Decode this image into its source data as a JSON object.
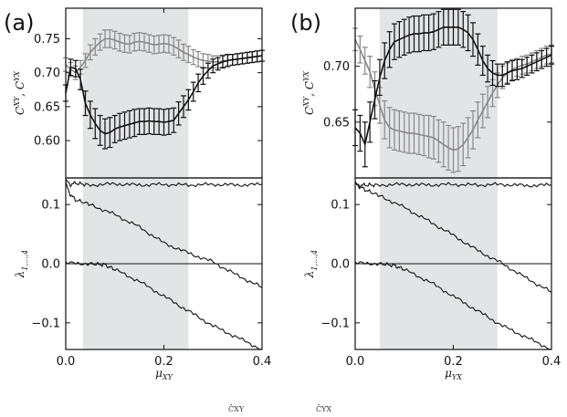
{
  "colors": {
    "shade": "#e3e4e6",
    "black_series": "#111111",
    "gray_series": "#888888",
    "frame": "#111111"
  },
  "panels": [
    {
      "label": "(a)",
      "xlabel": "μ",
      "xlabel_sub": "XY",
      "shade_x": [
        0.035,
        0.25
      ],
      "top": {
        "ylabel_html": "C^XY, C^YX",
        "ylim": [
          0.545,
          0.795
        ],
        "yticks": [
          0.6,
          0.65,
          0.7,
          0.75
        ],
        "ytick_labels": [
          "0.60",
          "0.65",
          "0.70",
          "0.75"
        ]
      },
      "bottom": {
        "ylabel": "λ",
        "ylabel_sub": "1,...,4",
        "ylim": [
          -0.145,
          0.145
        ],
        "yticks": [
          -0.1,
          0.0,
          0.1
        ],
        "ytick_labels": [
          "−0.1",
          "0.0",
          "0.1"
        ]
      },
      "xlim": [
        0.0,
        0.4
      ],
      "xticks": [
        0.0,
        0.2,
        0.4
      ],
      "xtick_labels": [
        "0.0",
        "0.2",
        "0.4"
      ]
    },
    {
      "label": "(b)",
      "xlabel": "μ",
      "xlabel_sub": "YX",
      "shade_x": [
        0.05,
        0.29
      ],
      "top": {
        "ylabel_html": "C^XY, C^YX",
        "ylim": [
          0.6,
          0.752
        ],
        "yticks": [
          0.65,
          0.7
        ],
        "ytick_labels": [
          "0.65",
          "0.70"
        ]
      },
      "bottom": {
        "ylabel": "λ",
        "ylabel_sub": "1,...,4",
        "ylim": [
          -0.145,
          0.145
        ],
        "yticks": [
          -0.1,
          0.0,
          0.1
        ],
        "ytick_labels": [
          "−0.1",
          "0.0",
          "0.1"
        ]
      },
      "xlim": [
        0.0,
        0.4
      ],
      "xticks": [
        0.0,
        0.2,
        0.4
      ],
      "xtick_labels": [
        "0.0",
        "0.2",
        "0.4"
      ]
    }
  ],
  "chart_data": [
    {
      "type": "line",
      "panel": "(a) top",
      "ylabel": "C^XY, C^YX",
      "ylim": [
        0.545,
        0.795
      ],
      "series": [
        {
          "name": "",
          "color": "black",
          "x": [
            0.0,
            0.01,
            0.02,
            0.03,
            0.04,
            0.05,
            0.06,
            0.07,
            0.08,
            0.09,
            0.1,
            0.11,
            0.12,
            0.13,
            0.14,
            0.15,
            0.16,
            0.17,
            0.18,
            0.19,
            0.2,
            0.21,
            0.22,
            0.23,
            0.24,
            0.25,
            0.26,
            0.27,
            0.28,
            0.29,
            0.3,
            0.31,
            0.32,
            0.33,
            0.34,
            0.35,
            0.36,
            0.37,
            0.38,
            0.39,
            0.4
          ],
          "y": [
            0.67,
            0.708,
            0.706,
            0.69,
            0.655,
            0.638,
            0.625,
            0.615,
            0.61,
            0.612,
            0.617,
            0.62,
            0.622,
            0.624,
            0.626,
            0.628,
            0.628,
            0.629,
            0.628,
            0.628,
            0.627,
            0.628,
            0.63,
            0.64,
            0.65,
            0.66,
            0.672,
            0.685,
            0.695,
            0.703,
            0.71,
            0.713,
            0.716,
            0.718,
            0.719,
            0.72,
            0.721,
            0.722,
            0.723,
            0.724,
            0.725
          ],
          "err": [
            0.012,
            0.012,
            0.012,
            0.015,
            0.018,
            0.02,
            0.022,
            0.022,
            0.022,
            0.022,
            0.02,
            0.02,
            0.02,
            0.02,
            0.02,
            0.019,
            0.019,
            0.019,
            0.019,
            0.019,
            0.019,
            0.019,
            0.018,
            0.017,
            0.016,
            0.015,
            0.014,
            0.013,
            0.012,
            0.011,
            0.01,
            0.009,
            0.009,
            0.009,
            0.008,
            0.008,
            0.008,
            0.008,
            0.008,
            0.008,
            0.008
          ]
        },
        {
          "name": "",
          "color": "gray",
          "x": [
            0.0,
            0.01,
            0.02,
            0.03,
            0.04,
            0.05,
            0.06,
            0.07,
            0.08,
            0.09,
            0.1,
            0.11,
            0.12,
            0.13,
            0.14,
            0.15,
            0.16,
            0.17,
            0.18,
            0.19,
            0.2,
            0.21,
            0.22,
            0.23,
            0.24,
            0.25,
            0.26,
            0.27,
            0.28,
            0.29,
            0.3,
            0.31,
            0.32,
            0.33,
            0.34,
            0.35,
            0.36,
            0.37,
            0.38,
            0.39,
            0.4
          ],
          "y": [
            0.712,
            0.705,
            0.7,
            0.708,
            0.718,
            0.73,
            0.738,
            0.745,
            0.75,
            0.75,
            0.748,
            0.745,
            0.743,
            0.742,
            0.745,
            0.746,
            0.745,
            0.743,
            0.741,
            0.742,
            0.743,
            0.742,
            0.739,
            0.735,
            0.73,
            0.727,
            0.723,
            0.72,
            0.718,
            0.717,
            0.716,
            0.716,
            0.717,
            0.718,
            0.719,
            0.72,
            0.721,
            0.722,
            0.723,
            0.724,
            0.725
          ],
          "err": [
            0.01,
            0.01,
            0.01,
            0.01,
            0.01,
            0.011,
            0.012,
            0.012,
            0.013,
            0.013,
            0.013,
            0.013,
            0.013,
            0.013,
            0.013,
            0.013,
            0.013,
            0.013,
            0.013,
            0.013,
            0.013,
            0.013,
            0.013,
            0.013,
            0.012,
            0.012,
            0.011,
            0.011,
            0.01,
            0.01,
            0.009,
            0.009,
            0.009,
            0.008,
            0.008,
            0.008,
            0.008,
            0.008,
            0.008,
            0.008,
            0.008
          ]
        }
      ]
    },
    {
      "type": "line",
      "panel": "(a) bottom",
      "ylabel": "λ1,...,4",
      "xlabel": "μXY",
      "ylim": [
        -0.145,
        0.145
      ],
      "series": [
        {
          "name": "",
          "x": [
            0.0,
            0.01,
            0.02,
            0.05,
            0.1,
            0.15,
            0.2,
            0.25,
            0.3,
            0.35,
            0.4
          ],
          "y": [
            0.14,
            0.134,
            0.136,
            0.133,
            0.135,
            0.133,
            0.134,
            0.133,
            0.134,
            0.133,
            0.134
          ]
        },
        {
          "name": "",
          "x": [
            0.0,
            0.01,
            0.02,
            0.05,
            0.1,
            0.15,
            0.2,
            0.25,
            0.3,
            0.35,
            0.4
          ],
          "y": [
            0.135,
            0.116,
            0.108,
            0.1,
            0.083,
            0.062,
            0.035,
            0.018,
            0.003,
            -0.02,
            -0.04
          ]
        },
        {
          "name": "",
          "x": [
            0.0,
            0.05,
            0.1,
            0.15,
            0.2,
            0.25,
            0.3,
            0.35,
            0.4
          ],
          "y": [
            0.0,
            0.0,
            0.0,
            0.0,
            0.0,
            0.0,
            0.0,
            0.0,
            0.0
          ]
        },
        {
          "name": "",
          "x": [
            0.0,
            0.05,
            0.08,
            0.1,
            0.15,
            0.2,
            0.25,
            0.3,
            0.35,
            0.4
          ],
          "y": [
            0.001,
            0.0,
            -0.002,
            -0.01,
            -0.03,
            -0.055,
            -0.08,
            -0.105,
            -0.125,
            -0.145
          ]
        }
      ]
    },
    {
      "type": "line",
      "panel": "(b) top",
      "ylabel": "C^XY, C^YX",
      "ylim": [
        0.6,
        0.752
      ],
      "series": [
        {
          "name": "",
          "color": "black",
          "x": [
            0.0,
            0.01,
            0.02,
            0.03,
            0.04,
            0.05,
            0.06,
            0.07,
            0.08,
            0.09,
            0.1,
            0.11,
            0.12,
            0.13,
            0.14,
            0.15,
            0.16,
            0.17,
            0.18,
            0.19,
            0.2,
            0.21,
            0.22,
            0.23,
            0.24,
            0.25,
            0.26,
            0.27,
            0.28,
            0.29,
            0.3,
            0.31,
            0.32,
            0.33,
            0.34,
            0.35,
            0.36,
            0.37,
            0.38,
            0.39,
            0.4
          ],
          "y": [
            0.645,
            0.64,
            0.63,
            0.65,
            0.67,
            0.69,
            0.705,
            0.715,
            0.722,
            0.724,
            0.726,
            0.728,
            0.729,
            0.729,
            0.73,
            0.73,
            0.731,
            0.733,
            0.735,
            0.735,
            0.735,
            0.735,
            0.733,
            0.73,
            0.724,
            0.715,
            0.705,
            0.698,
            0.694,
            0.692,
            0.692,
            0.694,
            0.696,
            0.697,
            0.698,
            0.7,
            0.702,
            0.704,
            0.706,
            0.708,
            0.71
          ],
          "err": [
            0.016,
            0.016,
            0.02,
            0.018,
            0.017,
            0.016,
            0.016,
            0.016,
            0.016,
            0.016,
            0.016,
            0.016,
            0.016,
            0.016,
            0.016,
            0.016,
            0.016,
            0.016,
            0.016,
            0.016,
            0.016,
            0.016,
            0.016,
            0.016,
            0.015,
            0.014,
            0.013,
            0.012,
            0.011,
            0.01,
            0.01,
            0.01,
            0.009,
            0.009,
            0.008,
            0.008,
            0.008,
            0.008,
            0.008,
            0.008,
            0.008
          ]
        },
        {
          "name": "",
          "color": "gray",
          "x": [
            0.0,
            0.01,
            0.02,
            0.03,
            0.04,
            0.05,
            0.06,
            0.07,
            0.08,
            0.09,
            0.1,
            0.11,
            0.12,
            0.13,
            0.14,
            0.15,
            0.16,
            0.17,
            0.18,
            0.19,
            0.2,
            0.21,
            0.22,
            0.23,
            0.24,
            0.25,
            0.26,
            0.27,
            0.28,
            0.29,
            0.3,
            0.31,
            0.32,
            0.33,
            0.34,
            0.35,
            0.36,
            0.37,
            0.38,
            0.39,
            0.4
          ],
          "y": [
            0.724,
            0.715,
            0.705,
            0.695,
            0.68,
            0.665,
            0.652,
            0.645,
            0.643,
            0.642,
            0.641,
            0.64,
            0.64,
            0.639,
            0.638,
            0.637,
            0.636,
            0.633,
            0.63,
            0.627,
            0.625,
            0.626,
            0.63,
            0.636,
            0.643,
            0.652,
            0.66,
            0.668,
            0.676,
            0.683,
            0.69,
            0.694,
            0.697,
            0.699,
            0.701,
            0.702,
            0.704,
            0.706,
            0.708,
            0.71,
            0.711
          ],
          "err": [
            0.01,
            0.012,
            0.012,
            0.014,
            0.015,
            0.016,
            0.017,
            0.018,
            0.018,
            0.018,
            0.018,
            0.018,
            0.018,
            0.018,
            0.018,
            0.019,
            0.019,
            0.019,
            0.02,
            0.02,
            0.02,
            0.02,
            0.019,
            0.018,
            0.017,
            0.016,
            0.015,
            0.014,
            0.012,
            0.011,
            0.01,
            0.009,
            0.009,
            0.008,
            0.008,
            0.008,
            0.008,
            0.008,
            0.008,
            0.008,
            0.008
          ]
        }
      ]
    },
    {
      "type": "line",
      "panel": "(b) bottom",
      "ylabel": "λ1,...,4",
      "xlabel": "μYX",
      "ylim": [
        -0.145,
        0.145
      ],
      "series": [
        {
          "name": "",
          "x": [
            0.0,
            0.01,
            0.02,
            0.05,
            0.1,
            0.15,
            0.2,
            0.25,
            0.3,
            0.35,
            0.4
          ],
          "y": [
            0.134,
            0.132,
            0.133,
            0.133,
            0.134,
            0.133,
            0.134,
            0.133,
            0.134,
            0.132,
            0.133
          ]
        },
        {
          "name": "",
          "x": [
            0.0,
            0.01,
            0.02,
            0.05,
            0.1,
            0.15,
            0.2,
            0.25,
            0.3,
            0.35,
            0.4
          ],
          "y": [
            0.135,
            0.13,
            0.125,
            0.115,
            0.095,
            0.072,
            0.048,
            0.022,
            0.0,
            -0.025,
            -0.048
          ]
        },
        {
          "name": "",
          "x": [
            0.0,
            0.05,
            0.1,
            0.15,
            0.2,
            0.25,
            0.3,
            0.35,
            0.4
          ],
          "y": [
            0.0,
            0.0,
            0.0,
            0.0,
            0.0,
            0.0,
            0.0,
            0.0,
            0.0
          ]
        },
        {
          "name": "",
          "x": [
            0.0,
            0.05,
            0.08,
            0.1,
            0.15,
            0.2,
            0.25,
            0.3,
            0.35,
            0.4
          ],
          "y": [
            0.001,
            0.0,
            -0.003,
            -0.01,
            -0.03,
            -0.055,
            -0.08,
            -0.105,
            -0.125,
            -0.145
          ]
        }
      ]
    }
  ],
  "caption": {
    "left": "ĈXY",
    "right": "ĈYX"
  }
}
